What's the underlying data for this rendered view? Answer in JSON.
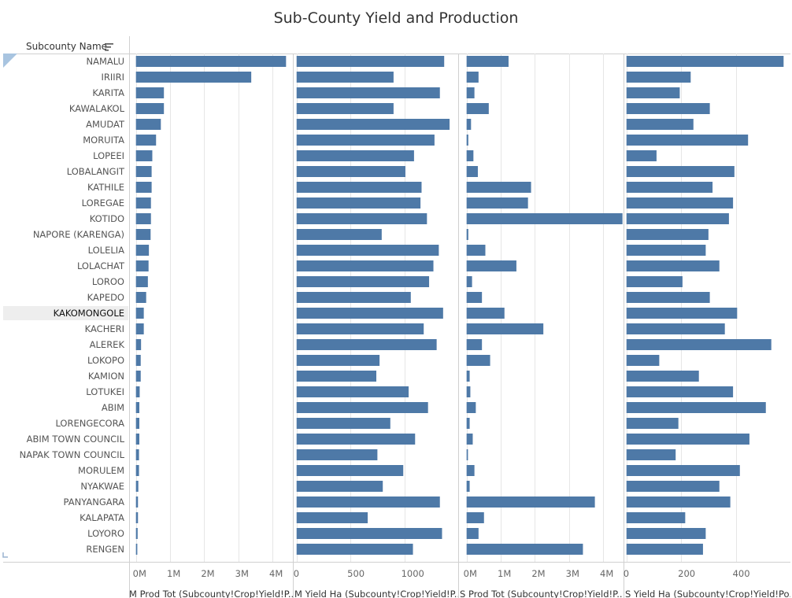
{
  "title": "Sub-County Yield and Production",
  "row_header": "Subcounty Name",
  "highlighted_row": "KAKOMONGOLE",
  "colors": {
    "bar": "#4e79a7",
    "grid": "#e6e6e6",
    "highlight_row": "#eeeeee"
  },
  "icons": {
    "sort": "sort-descending-icon"
  },
  "chart_data": {
    "type": "bar",
    "orientation": "horizontal",
    "categories": [
      "NAMALU",
      "IRIIRI",
      "KARITA",
      "KAWALAKOL",
      "AMUDAT",
      "MORUITA",
      "LOPEEI",
      "LOBALANGIT",
      "KATHILE",
      "LOREGAE",
      "KOTIDO",
      "NAPORE (KARENGA)",
      "LOLELIA",
      "LOLACHAT",
      "LOROO",
      "KAPEDO",
      "KAKOMONGOLE",
      "KACHERI",
      "ALEREK",
      "LOKOPO",
      "KAMION",
      "LOTUKEI",
      "ABIM",
      "LORENGECORA",
      "ABIM TOWN COUNCIL",
      "NAPAK TOWN COUNCIL",
      "MORULEM",
      "NYAKWAE",
      "PANYANGARA",
      "KALAPATA",
      "LOYORO",
      "RENGEN"
    ],
    "panels": [
      {
        "title": "M Prod Tot (Subcounty!Crop!Yield!P..",
        "ticks": [
          "0M",
          "1M",
          "2M",
          "3M",
          "4M"
        ],
        "tick_values": [
          0,
          1000000,
          2000000,
          3000000,
          4000000
        ],
        "xlim": [
          -200000,
          4600000
        ],
        "values": [
          4400000,
          3380000,
          820000,
          820000,
          730000,
          590000,
          480000,
          460000,
          460000,
          440000,
          440000,
          430000,
          380000,
          370000,
          350000,
          300000,
          230000,
          230000,
          150000,
          140000,
          140000,
          110000,
          100000,
          100000,
          100000,
          90000,
          90000,
          70000,
          60000,
          60000,
          50000,
          40000
        ]
      },
      {
        "title": "M Yield Ha (Subcounty!Crop!Yield!P..",
        "ticks": [
          "0",
          "500",
          "1000"
        ],
        "tick_values": [
          0,
          500,
          1000
        ],
        "xlim": [
          -20,
          1500
        ],
        "values": [
          1370,
          900,
          1330,
          900,
          1420,
          1280,
          1090,
          1010,
          1160,
          1150,
          1210,
          790,
          1320,
          1270,
          1230,
          1060,
          1360,
          1180,
          1300,
          770,
          740,
          1040,
          1220,
          870,
          1100,
          750,
          990,
          800,
          1330,
          660,
          1350,
          1080
        ]
      },
      {
        "title": "S Prod Tot (Subcounty!Crop!Yield!P..",
        "ticks": [
          "0M",
          "1M",
          "2M",
          "3M",
          "4M"
        ],
        "tick_values": [
          0,
          1000000,
          2000000,
          3000000,
          4000000
        ],
        "xlim": [
          -200000,
          4600000
        ],
        "values": [
          1230000,
          350000,
          230000,
          650000,
          130000,
          50000,
          200000,
          330000,
          1890000,
          1800000,
          4570000,
          50000,
          550000,
          1460000,
          160000,
          450000,
          1110000,
          2250000,
          450000,
          690000,
          90000,
          110000,
          270000,
          90000,
          180000,
          40000,
          230000,
          90000,
          3760000,
          510000,
          350000,
          3410000
        ]
      },
      {
        "title": "S Yield Ha (Subcounty!Crop!Yield!Po..",
        "ticks": [
          "0",
          "200",
          "400"
        ],
        "tick_values": [
          0,
          200,
          400
        ],
        "xlim": [
          -5,
          600
        ],
        "values": [
          575,
          235,
          195,
          305,
          245,
          445,
          110,
          395,
          315,
          390,
          375,
          300,
          290,
          340,
          205,
          305,
          405,
          360,
          530,
          120,
          265,
          390,
          510,
          190,
          450,
          180,
          415,
          340,
          380,
          215,
          290,
          280
        ]
      }
    ]
  }
}
